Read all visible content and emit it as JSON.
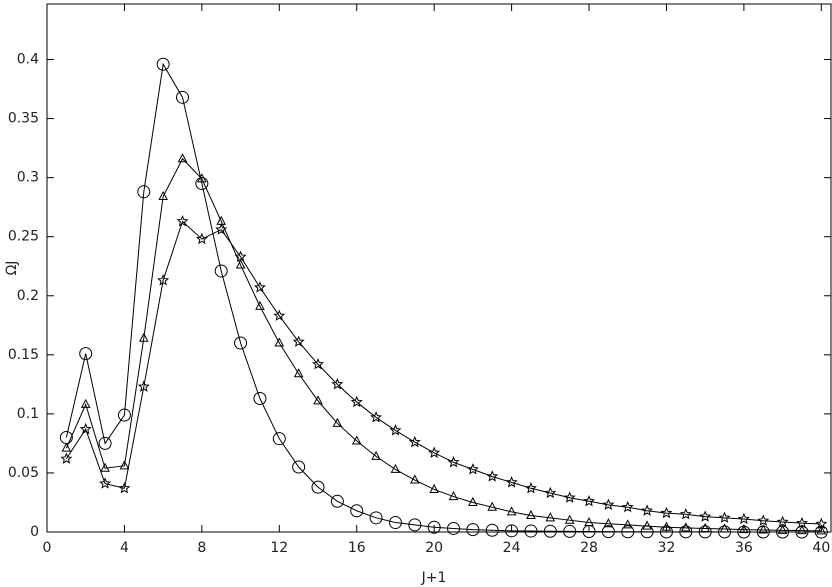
{
  "chart_data": {
    "type": "line",
    "xlabel": "J+1",
    "ylabel": "ΩJ",
    "x": [
      1,
      2,
      3,
      4,
      5,
      6,
      7,
      8,
      9,
      10,
      11,
      12,
      13,
      14,
      15,
      16,
      17,
      18,
      19,
      20,
      21,
      22,
      23,
      24,
      25,
      26,
      27,
      28,
      29,
      30,
      31,
      32,
      33,
      34,
      35,
      36,
      37,
      38,
      39,
      40
    ],
    "series": [
      {
        "color": "#000000",
        "marker": "circle",
        "values": [
          0.08,
          0.151,
          0.075,
          0.099,
          0.288,
          0.396,
          0.368,
          0.295,
          0.221,
          0.16,
          0.113,
          0.079,
          0.055,
          0.038,
          0.026,
          0.018,
          0.012,
          0.008,
          0.006,
          0.004,
          0.003,
          0.002,
          0.0015,
          0.001,
          0.0008,
          0.0006,
          0.0005,
          0.0004,
          0.0003,
          0.0002,
          0.0002,
          0.0001,
          0.0001,
          0.0001,
          0.0001,
          0,
          0,
          0,
          0,
          0
        ]
      },
      {
        "color": "#000000",
        "marker": "triangle",
        "values": [
          0.071,
          0.108,
          0.054,
          0.056,
          0.164,
          0.284,
          0.316,
          0.299,
          0.263,
          0.226,
          0.191,
          0.16,
          0.134,
          0.111,
          0.092,
          0.077,
          0.064,
          0.053,
          0.044,
          0.036,
          0.03,
          0.025,
          0.021,
          0.017,
          0.014,
          0.012,
          0.01,
          0.008,
          0.007,
          0.006,
          0.005,
          0.004,
          0.0035,
          0.003,
          0.0025,
          0.002,
          0.0017,
          0.0014,
          0.0012,
          0.001
        ]
      },
      {
        "color": "#000000",
        "marker": "star",
        "values": [
          0.062,
          0.087,
          0.041,
          0.037,
          0.123,
          0.213,
          0.263,
          0.248,
          0.256,
          0.233,
          0.207,
          0.183,
          0.161,
          0.142,
          0.125,
          0.11,
          0.097,
          0.086,
          0.076,
          0.067,
          0.059,
          0.053,
          0.047,
          0.042,
          0.037,
          0.033,
          0.029,
          0.026,
          0.023,
          0.021,
          0.018,
          0.016,
          0.015,
          0.013,
          0.012,
          0.011,
          0.0095,
          0.0085,
          0.0075,
          0.0068
        ]
      }
    ],
    "xlim": [
      0,
      40.5
    ],
    "ylim": [
      0,
      0.447
    ],
    "xticks": [
      0,
      4,
      8,
      12,
      16,
      20,
      24,
      28,
      32,
      36,
      40
    ],
    "yticks": [
      0,
      0.05,
      0.1,
      0.15,
      0.2,
      0.25,
      0.3,
      0.35,
      0.4
    ],
    "grid": false
  }
}
